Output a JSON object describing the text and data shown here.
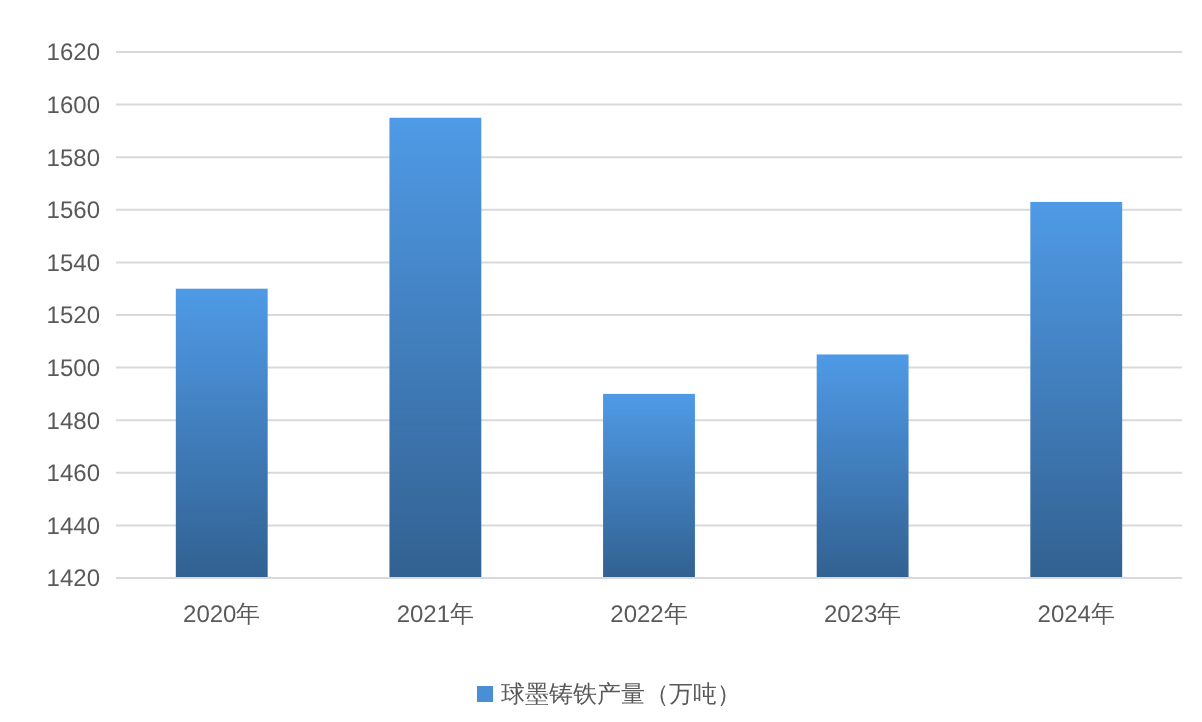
{
  "chart_data": {
    "type": "bar",
    "categories": [
      "2020年",
      "2021年",
      "2022年",
      "2023年",
      "2024年"
    ],
    "series": [
      {
        "name": "球墨铸铁产量（万吨）",
        "color": "#4a8fd6",
        "values": [
          1530,
          1595,
          1490,
          1505,
          1563
        ]
      }
    ],
    "ylim": [
      1420,
      1620
    ],
    "yticks": [
      1420,
      1440,
      1460,
      1480,
      1500,
      1520,
      1540,
      1560,
      1580,
      1600,
      1620
    ],
    "grid": "y",
    "legend": "bottom"
  }
}
